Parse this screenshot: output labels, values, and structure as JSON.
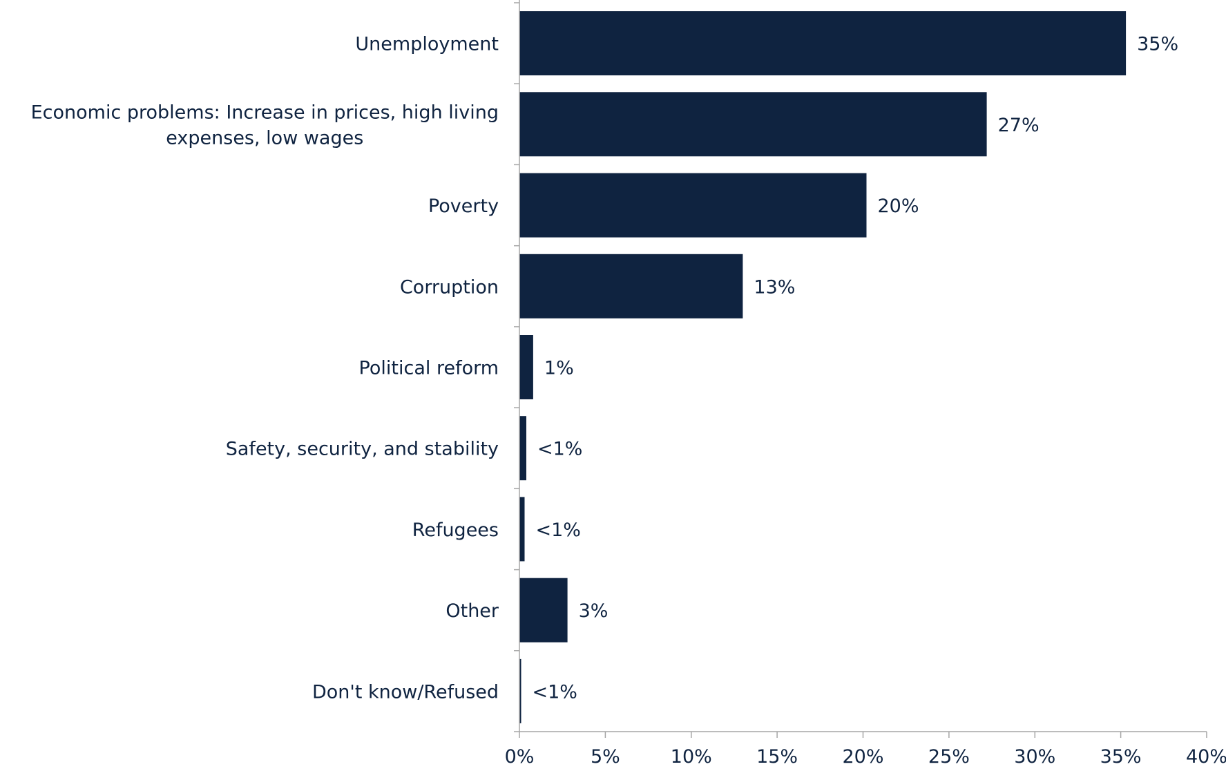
{
  "chart_data": {
    "type": "bar",
    "orientation": "horizontal",
    "title": "",
    "xlabel": "",
    "ylabel": "",
    "categories": [
      [
        "Unemployment"
      ],
      [
        "Economic problems: Increase in prices, high living",
        "expenses, low wages"
      ],
      [
        "Poverty"
      ],
      [
        "Corruption"
      ],
      [
        "Political reform"
      ],
      [
        "Safety, security, and stability"
      ],
      [
        "Refugees"
      ],
      [
        "Other"
      ],
      [
        "Don't know/Refused"
      ]
    ],
    "values": [
      35.3,
      27.2,
      20.2,
      13.0,
      0.8,
      0.4,
      0.3,
      2.8,
      0.1
    ],
    "value_labels": [
      "35%",
      "27%",
      "20%",
      "13%",
      "1%",
      "<1%",
      "<1%",
      "3%",
      "<1%"
    ],
    "xlim": [
      0,
      40
    ],
    "x_ticks": [
      0,
      5,
      10,
      15,
      20,
      25,
      30,
      35,
      40
    ],
    "x_tick_labels": [
      "0%",
      "5%",
      "10%",
      "15%",
      "20%",
      "25%",
      "30%",
      "35%",
      "40%"
    ],
    "grid": false,
    "bar_color": "#0f2340",
    "axis_color": "#a6a6a6"
  }
}
